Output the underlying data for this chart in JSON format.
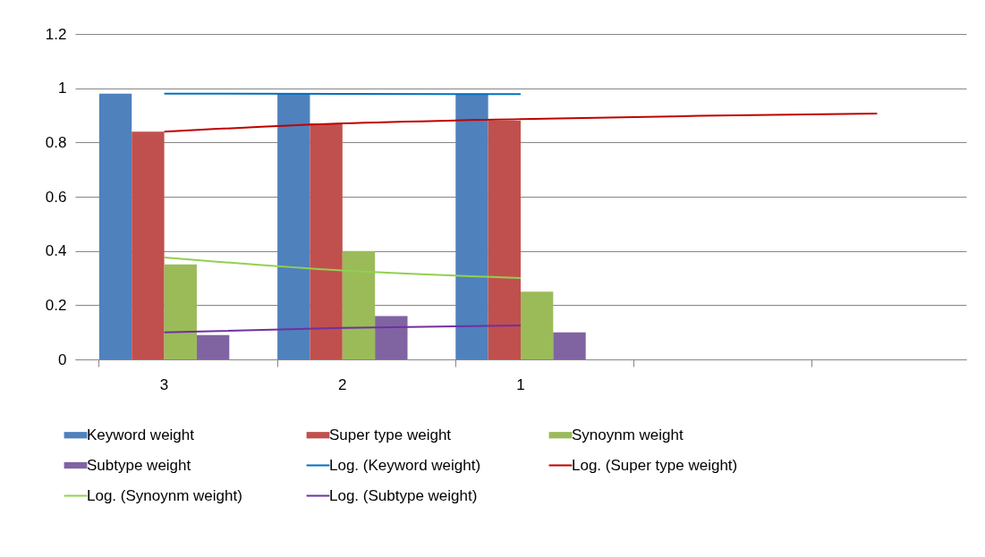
{
  "chart_data": {
    "type": "bar",
    "categories": [
      "3",
      "2",
      "1",
      null,
      null
    ],
    "ylim": [
      0,
      1.2
    ],
    "yticks": [
      0,
      0.2,
      0.4,
      0.6,
      0.8,
      1,
      1.2
    ],
    "grid": "y",
    "legend": "bottom",
    "series": [
      {
        "name": "Keyword weight",
        "color": "#4f81bd",
        "values": [
          0.98,
          0.98,
          0.98,
          null,
          null
        ]
      },
      {
        "name": "Super type weight",
        "color": "#c0504d",
        "values": [
          0.84,
          0.87,
          0.88,
          null,
          null
        ]
      },
      {
        "name": "Synoynm weight",
        "color": "#9bbb59",
        "values": [
          0.35,
          0.4,
          0.25,
          null,
          null
        ]
      },
      {
        "name": "Subtype weight",
        "color": "#8064a2",
        "values": [
          0.09,
          0.16,
          0.1,
          null,
          null
        ]
      },
      {
        "name": "Log. (Keyword weight)",
        "type": "line",
        "color": "#0070c0",
        "values": [
          0.98,
          0.979,
          0.978,
          null,
          null
        ]
      },
      {
        "name": "Log. (Super type weight)",
        "type": "line",
        "color": "#c00000",
        "values": [
          0.84,
          0.87,
          0.886,
          0.898,
          0.907
        ]
      },
      {
        "name": "Log. (Synoynm weight)",
        "type": "line",
        "color": "#92d050",
        "values": [
          0.376,
          0.328,
          0.3,
          null,
          null
        ]
      },
      {
        "name": "Log. (Subtype weight)",
        "type": "line",
        "color": "#7030a0",
        "values": [
          0.1,
          0.116,
          0.125,
          null,
          null
        ]
      }
    ]
  }
}
